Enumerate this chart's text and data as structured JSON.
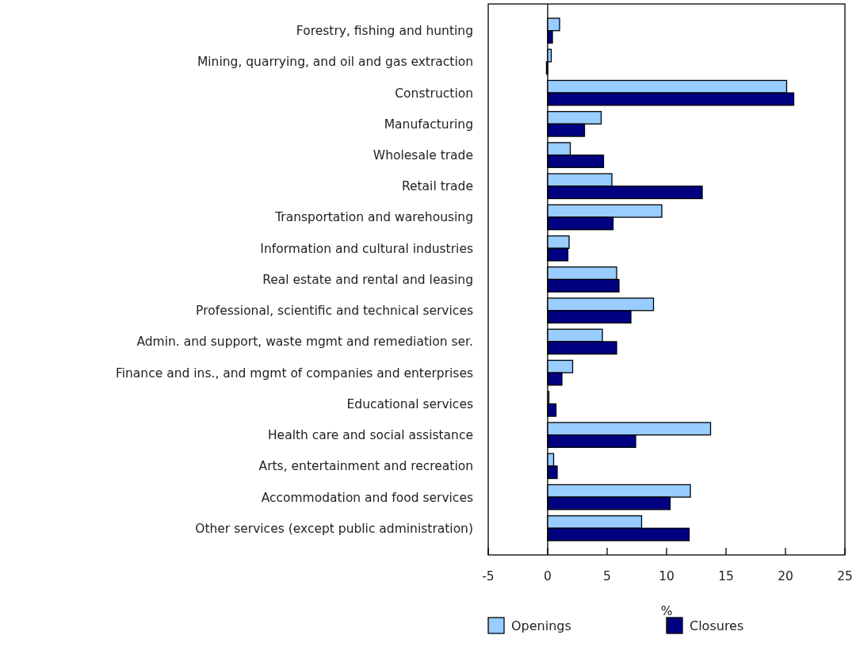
{
  "chart_data": {
    "type": "bar",
    "orientation": "horizontal",
    "xlabel": "%",
    "categories": [
      "Forestry, fishing and hunting",
      "Mining, quarrying, and oil and gas extraction",
      "Construction",
      "Manufacturing",
      "Wholesale trade",
      "Retail trade",
      "Transportation and warehousing",
      "Information and cultural industries",
      "Real estate and rental and leasing",
      "Professional, scientific and technical services",
      "Admin. and support, waste mgmt and remediation ser.",
      "Finance and ins., and mgmt of companies and enterprises",
      "Educational services",
      "Health care and social assistance",
      "Arts, entertainment and recreation",
      "Accommodation and food services",
      "Other services (except public administration)"
    ],
    "series": [
      {
        "name": "Openings",
        "color": "#99ccff",
        "values": [
          1.0,
          0.3,
          20.1,
          4.5,
          1.9,
          5.4,
          9.6,
          1.8,
          5.8,
          8.9,
          4.6,
          2.1,
          0.1,
          13.7,
          0.5,
          12.0,
          7.9
        ]
      },
      {
        "name": "Closures",
        "color": "#000080",
        "values": [
          0.4,
          -0.1,
          20.7,
          3.1,
          4.7,
          13.0,
          5.5,
          1.7,
          6.0,
          7.0,
          5.8,
          1.2,
          0.7,
          7.4,
          0.8,
          10.3,
          11.9
        ]
      }
    ],
    "xlim": [
      -5,
      25
    ],
    "xticks": [
      -5,
      0,
      5,
      10,
      15,
      20,
      25
    ],
    "ref_lines": [
      {
        "axis": "x",
        "value": 0,
        "color": "#000000"
      }
    ],
    "legend": "bottom"
  }
}
